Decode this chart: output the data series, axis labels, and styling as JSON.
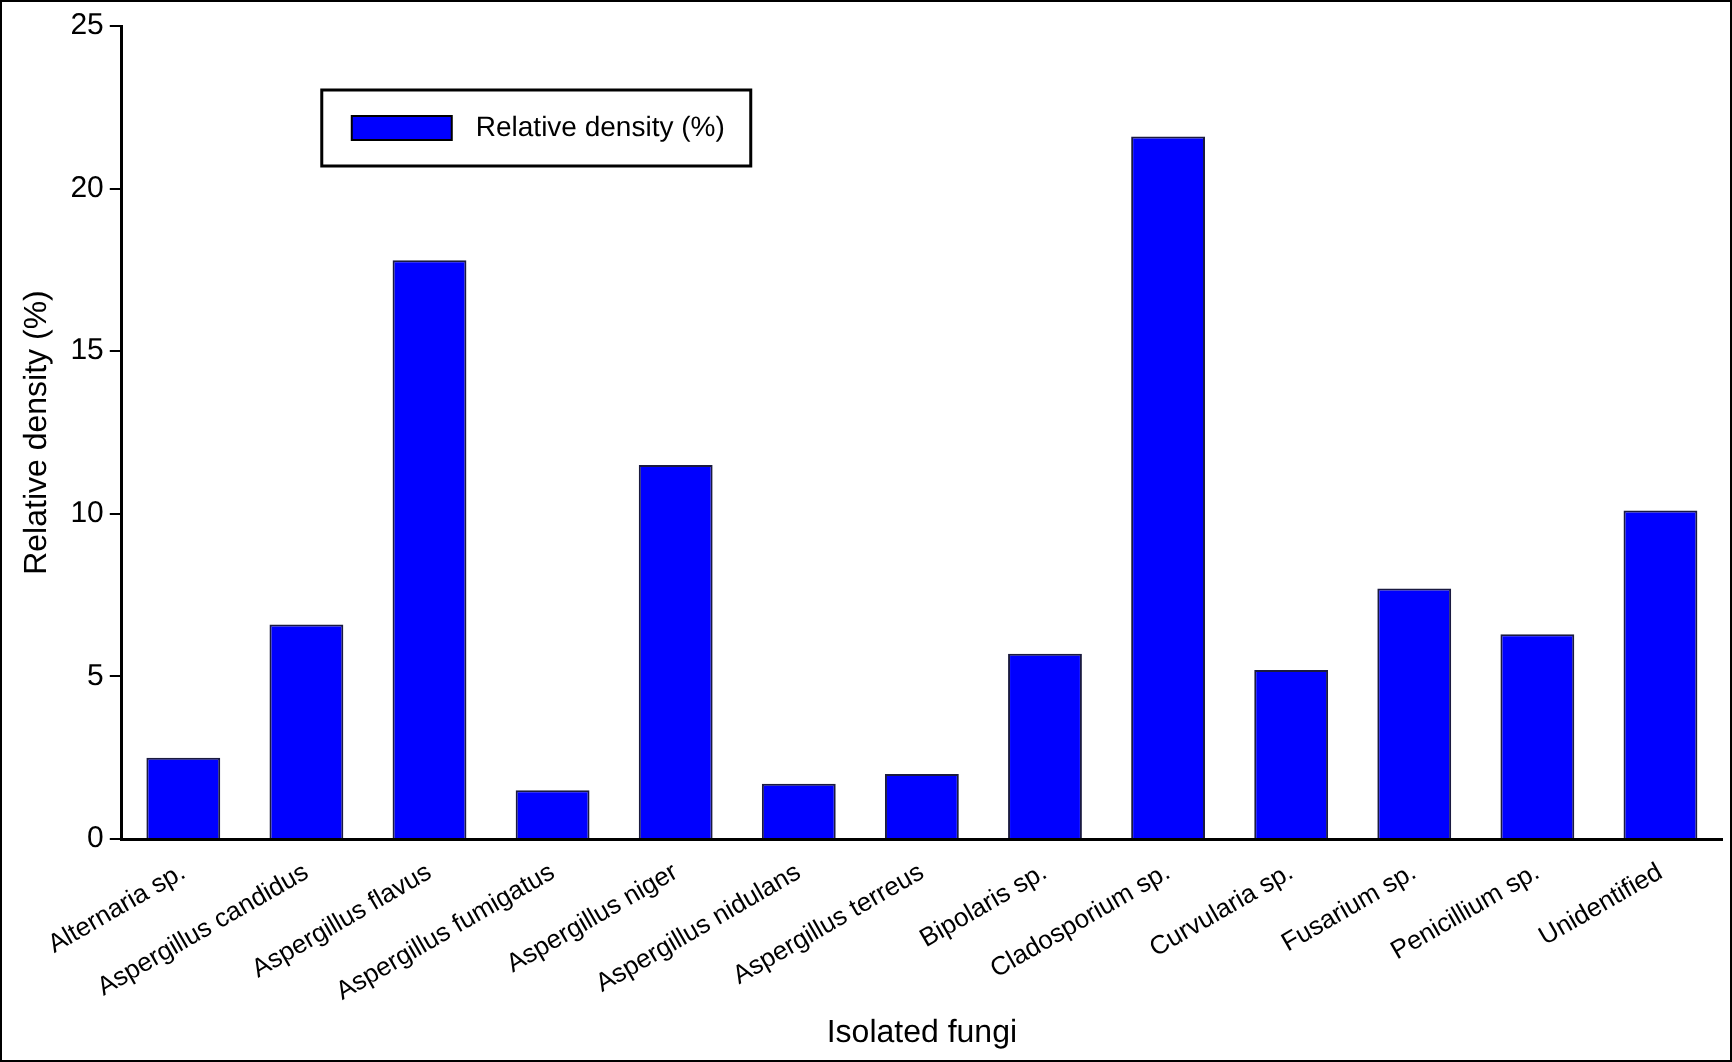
{
  "chart_data": {
    "type": "bar",
    "xlabel": "Isolated fungi",
    "ylabel": "Relative density (%)",
    "categories": [
      "Alternaria sp.",
      "Aspergillus candidus",
      "Aspergillus flavus",
      "Aspergillus fumigatus",
      "Aspergillus niger",
      "Aspergillus nidulans",
      "Aspergillus terreus",
      "Bipolaris sp.",
      "Cladosporium sp.",
      "Curvularia sp.",
      "Fusarium sp.",
      "Penicillium sp.",
      "Unidentified"
    ],
    "series": [
      {
        "name": "Relative density (%)",
        "color": "#0000ff",
        "values": [
          2.5,
          6.6,
          17.8,
          1.5,
          11.5,
          1.7,
          2.0,
          5.7,
          21.6,
          5.2,
          7.7,
          6.3,
          10.1
        ]
      }
    ],
    "ylim": [
      0,
      25
    ],
    "yticks": [
      0,
      5,
      10,
      15,
      20,
      25
    ],
    "grid": false,
    "legend": "top left"
  }
}
